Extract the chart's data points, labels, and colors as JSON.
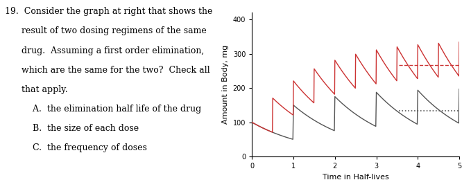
{
  "xlabel": "Time in Half-lives",
  "ylabel": "Amount in Body, mg",
  "xlim": [
    0,
    5
  ],
  "ylim": [
    0,
    420
  ],
  "yticks": [
    0,
    100,
    200,
    300,
    400
  ],
  "xticks": [
    0,
    1,
    2,
    3,
    4,
    5
  ],
  "gray_dose": 100,
  "gray_interval": 1.0,
  "gray_color": "#555555",
  "gray_dashed_y": 133,
  "red_dose": 100,
  "red_interval": 0.5,
  "red_color": "#cc3333",
  "red_dashed_y": 267,
  "dashed_x_start": 3.55,
  "dashed_x_end": 5.0,
  "n_halflives": 5.0,
  "background_color": "#ffffff",
  "figsize": [
    6.79,
    2.6
  ],
  "dpi": 100,
  "question_text": [
    "19.  Consider the graph at right that shows the",
    "      result of two dosing regimens of the same",
    "      drug.  Assuming a first order elimination,",
    "      which are the same for the two?  Check all",
    "      that apply.",
    "          A.  the elimination half life of the drug",
    "          B.  the size of each dose",
    "          C.  the frequency of doses"
  ]
}
